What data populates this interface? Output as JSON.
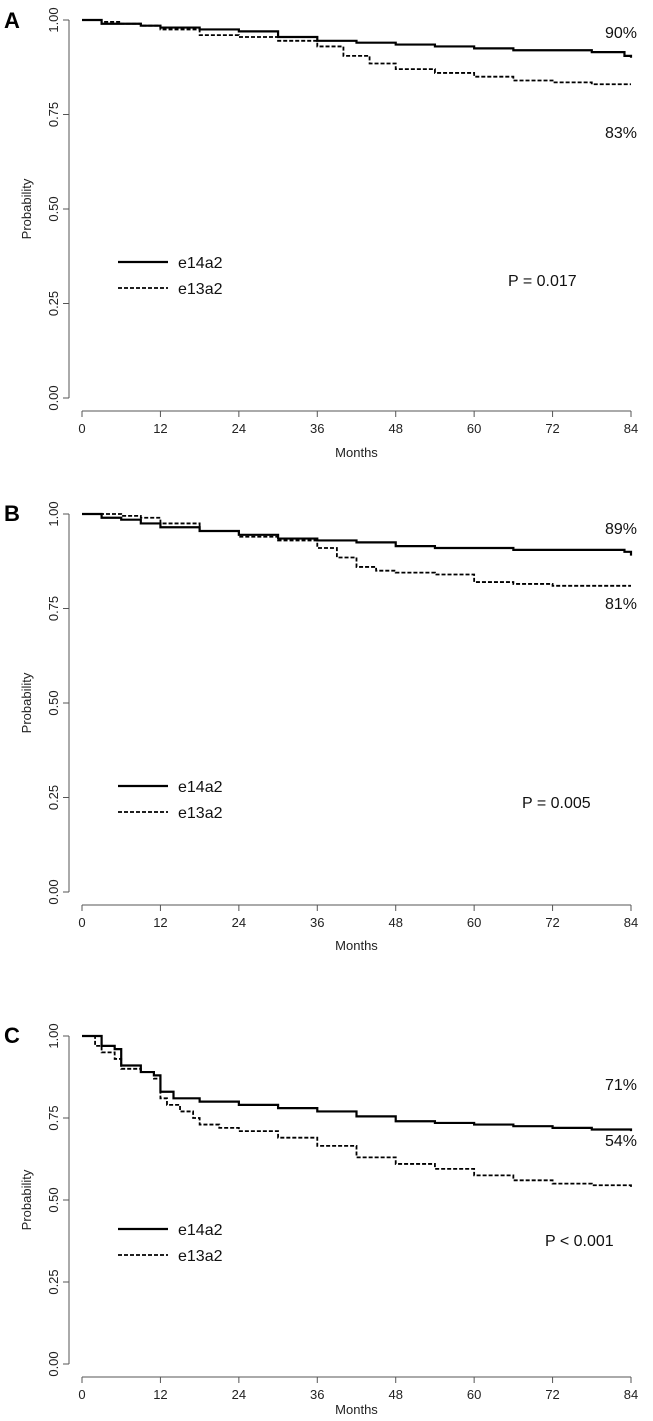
{
  "chart_data": [
    {
      "panel_label": "A",
      "type": "line",
      "xlabel": "Months",
      "ylabel": "Probability",
      "xlim": [
        0,
        84
      ],
      "ylim": [
        0,
        1
      ],
      "xticks": [
        "0",
        "12",
        "24",
        "36",
        "48",
        "60",
        "72",
        "84"
      ],
      "yticks": [
        "0.00",
        "0.25",
        "0.50",
        "0.75",
        "1.00"
      ],
      "grid": false,
      "legend_position": "middle-left",
      "p_value": "P = 0.017",
      "series": [
        {
          "name": "e14a2",
          "style": "solid",
          "end_label": "90%",
          "x": [
            0,
            3,
            6,
            9,
            12,
            18,
            24,
            30,
            36,
            42,
            48,
            54,
            60,
            66,
            72,
            78,
            83,
            84
          ],
          "y": [
            1.0,
            0.99,
            0.99,
            0.985,
            0.98,
            0.975,
            0.97,
            0.955,
            0.945,
            0.94,
            0.935,
            0.93,
            0.925,
            0.92,
            0.92,
            0.915,
            0.905,
            0.9
          ]
        },
        {
          "name": "e13a2",
          "style": "dashed",
          "end_label": "83%",
          "x": [
            0,
            3,
            6,
            9,
            12,
            18,
            24,
            30,
            36,
            40,
            44,
            48,
            54,
            60,
            66,
            72,
            78,
            84
          ],
          "y": [
            1.0,
            0.995,
            0.99,
            0.985,
            0.975,
            0.96,
            0.955,
            0.945,
            0.93,
            0.905,
            0.885,
            0.87,
            0.86,
            0.85,
            0.84,
            0.835,
            0.83,
            0.83
          ]
        }
      ]
    },
    {
      "panel_label": "B",
      "type": "line",
      "xlabel": "Months",
      "ylabel": "Probability",
      "xlim": [
        0,
        84
      ],
      "ylim": [
        0,
        1
      ],
      "xticks": [
        "0",
        "12",
        "24",
        "36",
        "48",
        "60",
        "72",
        "84"
      ],
      "yticks": [
        "0.00",
        "0.25",
        "0.50",
        "0.75",
        "1.00"
      ],
      "grid": false,
      "legend_position": "bottom-left",
      "p_value": "P = 0.005",
      "series": [
        {
          "name": "e14a2",
          "style": "solid",
          "end_label": "89%",
          "x": [
            0,
            3,
            6,
            9,
            12,
            18,
            24,
            30,
            36,
            42,
            48,
            54,
            60,
            66,
            72,
            78,
            83,
            84
          ],
          "y": [
            1.0,
            0.99,
            0.985,
            0.975,
            0.965,
            0.955,
            0.945,
            0.935,
            0.93,
            0.925,
            0.915,
            0.91,
            0.91,
            0.905,
            0.905,
            0.905,
            0.9,
            0.89
          ]
        },
        {
          "name": "e13a2",
          "style": "dashed",
          "end_label": "81%",
          "x": [
            0,
            3,
            6,
            9,
            12,
            18,
            24,
            30,
            36,
            39,
            42,
            45,
            48,
            54,
            60,
            66,
            72,
            78,
            84
          ],
          "y": [
            1.0,
            1.0,
            0.995,
            0.99,
            0.975,
            0.955,
            0.94,
            0.93,
            0.91,
            0.885,
            0.86,
            0.85,
            0.845,
            0.84,
            0.82,
            0.815,
            0.81,
            0.81,
            0.81
          ]
        }
      ]
    },
    {
      "panel_label": "C",
      "type": "line",
      "xlabel": "Months",
      "ylabel": "Probability",
      "xlim": [
        0,
        84
      ],
      "ylim": [
        0,
        1
      ],
      "xticks": [
        "0",
        "12",
        "24",
        "36",
        "48",
        "60",
        "72",
        "84"
      ],
      "yticks": [
        "0.00",
        "0.25",
        "0.50",
        "0.75",
        "1.00"
      ],
      "grid": false,
      "legend_position": "bottom-left",
      "p_value": "P < 0.001",
      "series": [
        {
          "name": "e14a2",
          "style": "solid",
          "end_label": "71%",
          "x": [
            0,
            1,
            3,
            5,
            6,
            9,
            11,
            12,
            14,
            18,
            24,
            30,
            36,
            42,
            48,
            54,
            60,
            66,
            72,
            78,
            84
          ],
          "y": [
            1.0,
            1.0,
            0.97,
            0.96,
            0.91,
            0.89,
            0.88,
            0.83,
            0.81,
            0.8,
            0.79,
            0.78,
            0.77,
            0.755,
            0.74,
            0.735,
            0.73,
            0.725,
            0.72,
            0.715,
            0.71
          ]
        },
        {
          "name": "e13a2",
          "style": "dashed",
          "end_label": "54%",
          "x": [
            0,
            2,
            3,
            5,
            6,
            9,
            11,
            12,
            13,
            15,
            17,
            18,
            21,
            24,
            30,
            36,
            42,
            48,
            54,
            60,
            66,
            72,
            78,
            84
          ],
          "y": [
            1.0,
            0.97,
            0.95,
            0.93,
            0.9,
            0.89,
            0.87,
            0.81,
            0.79,
            0.77,
            0.75,
            0.73,
            0.72,
            0.71,
            0.69,
            0.665,
            0.63,
            0.61,
            0.595,
            0.575,
            0.56,
            0.55,
            0.545,
            0.54
          ]
        }
      ]
    }
  ]
}
